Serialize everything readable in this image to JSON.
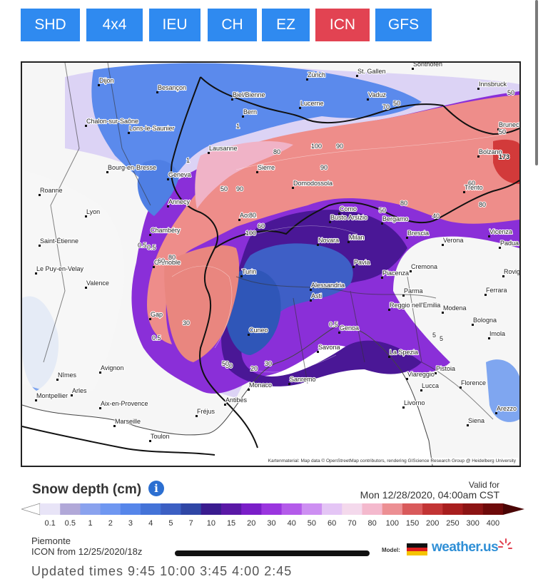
{
  "tabs": [
    {
      "label": "SHD",
      "active": false
    },
    {
      "label": "4x4",
      "active": false
    },
    {
      "label": "IEU",
      "active": false
    },
    {
      "label": "CH",
      "active": false
    },
    {
      "label": "EZ",
      "active": false
    },
    {
      "label": "ICN",
      "active": true
    },
    {
      "label": "GFS",
      "active": false
    }
  ],
  "colors": {
    "tab": "#2f8af0",
    "tab_active": "#e24352"
  },
  "map": {
    "attribution": "Kartenmaterial: Map data © OpenStreetMap contributors, rendering GIScience Research Group @ Heidelberg University",
    "cities": [
      "Dijon",
      "Besançon",
      "Zürich",
      "St. Gallen",
      "Sonthofen",
      "Innsbruck",
      "Biel/Bienne",
      "Vaduz",
      "Bern",
      "Lucerne",
      "Chalon-sur-Saône",
      "Lons-le-Saunier",
      "Bruneck",
      "Lausanne",
      "Bolzano",
      "Bourg-en-Bresse",
      "Geneva",
      "Sierre",
      "Domodossola",
      "Trento",
      "Roanne",
      "Annecy",
      "Lyon",
      "Como",
      "Aosta",
      "Bergamo",
      "Busto Arsizio",
      "Chambéry",
      "Brescia",
      "Vicenza",
      "Saint-Étienne",
      "Milan",
      "Novara",
      "Verona",
      "Padua",
      "Grenoble",
      "Cremona",
      "Le Puy-en-Velay",
      "Turin",
      "Pavia",
      "Piacenza",
      "Rovigo",
      "Valence",
      "Alessandria",
      "Parma",
      "Ferrara",
      "Asti",
      "Reggio nell'Emilia",
      "Modena",
      "Gap",
      "Bologna",
      "Imola",
      "Cuneo",
      "Genoa",
      "Savona",
      "La Spezia",
      "Nîmes",
      "Avignon",
      "Pistoia",
      "Viareggio",
      "Arles",
      "Monaco",
      "Sanremo",
      "Lucca",
      "Florence",
      "Montpellier",
      "Aix-en-Provence",
      "Antibes",
      "Fréjus",
      "Livorno",
      "Marseille",
      "Siena",
      "Toulon",
      "Arezzo"
    ],
    "values": [
      "0.5",
      "1",
      "50",
      "70",
      "50",
      "50",
      "80",
      "100",
      "90",
      "173",
      "50",
      "90",
      "90",
      "60",
      "80",
      "50",
      "80",
      "40",
      "80",
      "60",
      "100",
      "80",
      "60",
      "0.5",
      "30",
      "0.5",
      "5",
      "5",
      "0.5",
      "30",
      "50",
      "20",
      "30",
      "1"
    ]
  },
  "legend": {
    "title": "Snow depth (cm)",
    "valid_for_label": "Valid for",
    "valid_for": "Mon 12/28/2020, 04:00am CST",
    "labels": [
      "0.1",
      "0.5",
      "1",
      "2",
      "3",
      "4",
      "5",
      "7",
      "10",
      "15",
      "20",
      "30",
      "40",
      "50",
      "60",
      "70",
      "80",
      "100",
      "150",
      "200",
      "250",
      "300",
      "400"
    ],
    "colors": [
      "#e8e4f7",
      "#b1a8d8",
      "#8aa2ee",
      "#6f97f1",
      "#5686ea",
      "#4473d8",
      "#3c5fc3",
      "#2f46a5",
      "#3a1c8f",
      "#5a18a6",
      "#7a1ec8",
      "#9a35df",
      "#b45bea",
      "#cd8ff2",
      "#e4c5f5",
      "#f4d9ec",
      "#f4b9cd",
      "#ec8f93",
      "#d95a5b",
      "#c23434",
      "#a81e1e",
      "#8c1414",
      "#6e0a0a"
    ]
  },
  "region": "Piemonte",
  "run": "ICON from 12/25/2020/18z",
  "model_label": "Model:",
  "brand": "weather.us",
  "cutoff_text": "Updated times 9:45  10:00  3:45  4:00  2:45"
}
